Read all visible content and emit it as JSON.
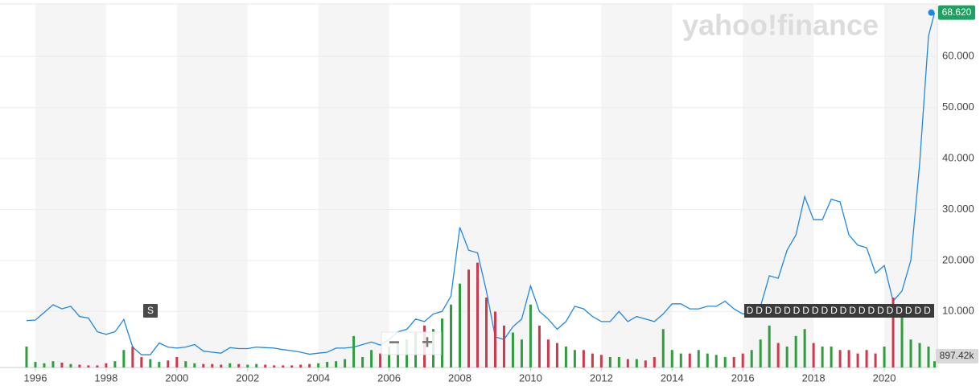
{
  "chart_data": {
    "type": "line",
    "watermark": "yahoo!finance",
    "x": [
      1995.75,
      1996,
      1996.25,
      1996.5,
      1996.75,
      1997,
      1997.25,
      1997.5,
      1997.75,
      1998,
      1998.25,
      1998.5,
      1998.75,
      1999,
      1999.25,
      1999.5,
      1999.75,
      2000,
      2000.25,
      2000.5,
      2000.75,
      2001,
      2001.25,
      2001.5,
      2001.75,
      2002,
      2002.25,
      2002.5,
      2002.75,
      2003,
      2003.25,
      2003.5,
      2003.75,
      2004,
      2004.25,
      2004.5,
      2004.75,
      2005,
      2005.25,
      2005.5,
      2005.75,
      2006,
      2006.25,
      2006.5,
      2006.75,
      2007,
      2007.25,
      2007.5,
      2007.75,
      2008,
      2008.25,
      2008.5,
      2008.75,
      2009,
      2009.25,
      2009.5,
      2009.75,
      2010,
      2010.25,
      2010.5,
      2010.75,
      2011,
      2011.25,
      2011.5,
      2011.75,
      2012,
      2012.25,
      2012.5,
      2012.75,
      2013,
      2013.25,
      2013.5,
      2013.75,
      2014,
      2014.25,
      2014.5,
      2014.75,
      2015,
      2015.25,
      2015.5,
      2015.75,
      2016,
      2016.25,
      2016.5,
      2016.75,
      2017,
      2017.25,
      2017.5,
      2017.75,
      2018,
      2018.25,
      2018.5,
      2018.75,
      2019,
      2019.25,
      2019.5,
      2019.75,
      2020,
      2020.25,
      2020.5,
      2020.75,
      2021,
      2021.25,
      2021.42
    ],
    "series": [
      {
        "color": "#1e88e5",
        "values": [
          8.2,
          8.3,
          9.8,
          11.3,
          10.5,
          11.0,
          9.0,
          8.7,
          6.0,
          5.5,
          6.0,
          8.4,
          3.0,
          1.5,
          1.5,
          3.8,
          3.0,
          2.8,
          3.0,
          3.5,
          2.2,
          2.0,
          1.8,
          2.9,
          2.7,
          2.7,
          3.0,
          2.9,
          2.8,
          2.5,
          2.3,
          2.0,
          1.6,
          1.8,
          2.0,
          2.8,
          2.8,
          3.0,
          3.5,
          4.0,
          3.4,
          4.5,
          6.0,
          6.5,
          8.5,
          8.0,
          9.5,
          10.0,
          13.0,
          26.5,
          22.0,
          21.5,
          14.0,
          5.0,
          4.5,
          7.0,
          8.5,
          15.0,
          10.0,
          8.5,
          6.5,
          8.0,
          11.0,
          10.5,
          9.0,
          8.0,
          8.0,
          10.0,
          8.0,
          9.0,
          8.5,
          8.0,
          9.5,
          11.5,
          11.5,
          10.5,
          10.5,
          11.0,
          11.0,
          12.0,
          10.5,
          9.5,
          9.8,
          11.0,
          17.0,
          16.5,
          22.0,
          25.0,
          32.5,
          28.0,
          28.0,
          32.0,
          31.5,
          25.0,
          23.0,
          22.5,
          17.5,
          19.0,
          12.0,
          14.0,
          20.0,
          39.0,
          64.0,
          68.62
        ]
      },
      {
        "type": "bar",
        "axis": "y2",
        "up_color": "#2e9e3e",
        "down_color": "#d0384b",
        "values": [
          3000,
          800,
          600,
          900,
          700,
          500,
          400,
          300,
          300,
          600,
          900,
          2500,
          3000,
          1500,
          1200,
          800,
          1000,
          1500,
          900,
          600,
          500,
          500,
          400,
          600,
          500,
          400,
          500,
          400,
          300,
          300,
          300,
          400,
          500,
          600,
          800,
          900,
          1200,
          4500,
          1500,
          2500,
          2000,
          3000,
          3500,
          4000,
          5000,
          6000,
          5500,
          7000,
          9000,
          12000,
          14000,
          15000,
          10000,
          8000,
          6000,
          5000,
          4000,
          9000,
          6000,
          4000,
          3500,
          3000,
          2500,
          2500,
          2000,
          1800,
          1500,
          1500,
          1200,
          1200,
          1000,
          1500,
          5500,
          2500,
          2000,
          2000,
          2500,
          2000,
          1800,
          1500,
          1500,
          2000,
          2500,
          4000,
          6000,
          3500,
          3000,
          4500,
          5500,
          3500,
          3000,
          3000,
          2500,
          2500,
          2000,
          2500,
          2000,
          3000,
          10000,
          9000,
          4000,
          3500,
          3000,
          897.42
        ]
      }
    ],
    "xlim": [
      1995,
      2021.5
    ],
    "xticks": [
      1996,
      1998,
      2000,
      2002,
      2004,
      2006,
      2008,
      2010,
      2012,
      2014,
      2016,
      2018,
      2020
    ],
    "ylim": [
      -1,
      70.3
    ],
    "yticks": [
      {
        "value": 10,
        "label": "10.000"
      },
      {
        "value": 20,
        "label": "20.000"
      },
      {
        "value": 30,
        "label": "30.000"
      },
      {
        "value": 40,
        "label": "40.000"
      },
      {
        "value": 50,
        "label": "50.000"
      },
      {
        "value": 60,
        "label": "60.000"
      }
    ],
    "y2lim": [
      0,
      52000
    ],
    "grid": true,
    "last_price": {
      "value": 68.62,
      "label": "68.620"
    },
    "last_volume": {
      "value": 897.42,
      "label": "897.42k"
    },
    "split_flag": "S",
    "dividend_flag": "D",
    "zoom_out": "−",
    "zoom_in": "+"
  }
}
